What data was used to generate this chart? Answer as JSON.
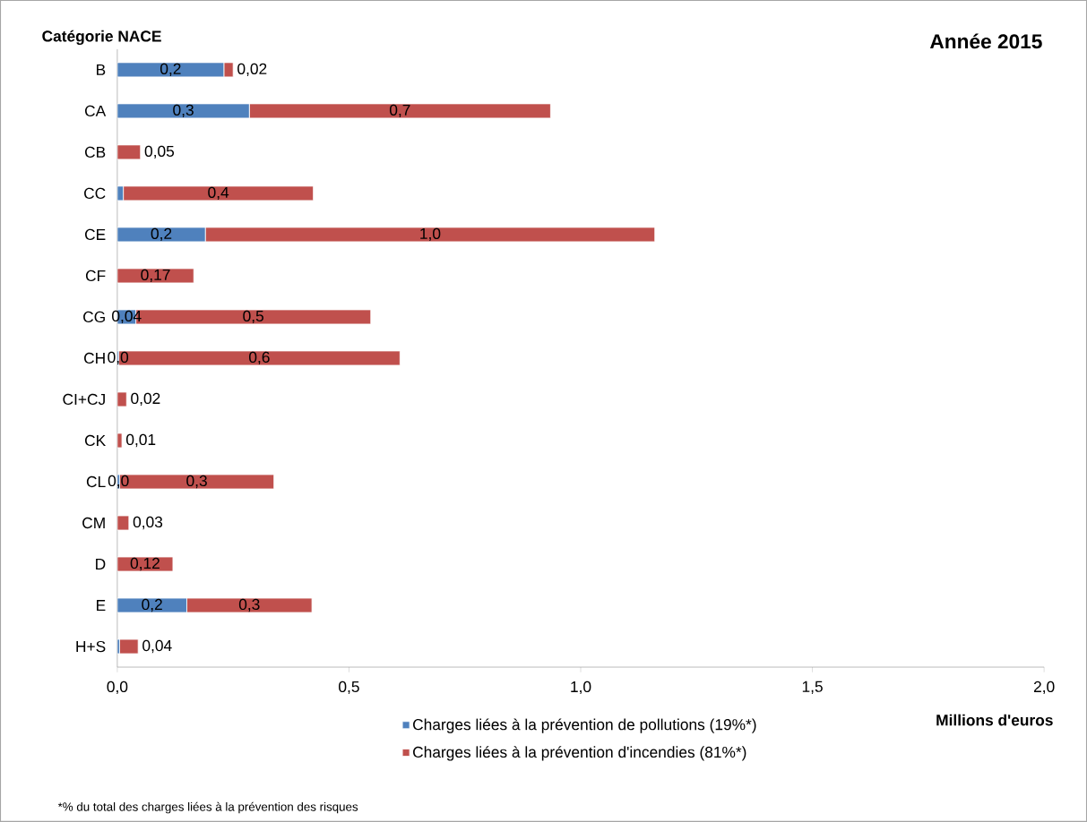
{
  "chart_data": {
    "type": "bar",
    "orientation": "horizontal",
    "stacked": true,
    "title": "Année 2015",
    "xlabel": "Millions d'euros",
    "ylabel": "Catégorie NACE",
    "categories": [
      "B",
      "CA",
      "CB",
      "CC",
      "CE",
      "CF",
      "CG",
      "CH",
      "CI+CJ",
      "CK",
      "CL",
      "CM",
      "D",
      "E",
      "H+S"
    ],
    "series": [
      {
        "name": "Charges liées à la prévention de pollutions (19%*)",
        "color": "#4f81bd",
        "values": [
          0.23,
          0.285,
          0,
          0.013,
          0.19,
          null,
          0.04,
          0.003,
          0,
          0,
          0.005,
          0,
          0,
          0.15,
          0.005
        ],
        "value_labels": [
          "0,2",
          "0,3",
          null,
          null,
          "0,2",
          null,
          "0,04",
          "0,0",
          null,
          null,
          "0,0",
          null,
          null,
          "0,2",
          null
        ]
      },
      {
        "name": "Charges liées à la prévention d'incendies (81%*)",
        "color": "#c0504d",
        "values": [
          0.02,
          0.65,
          0.05,
          0.41,
          0.97,
          0.165,
          0.507,
          0.607,
          0.02,
          0.01,
          0.333,
          0.025,
          0.12,
          0.27,
          0.04
        ],
        "value_labels": [
          "0,02",
          "0,7",
          "0,05",
          "0,4",
          "1,0",
          "0,17",
          "0,5",
          "0,6",
          "0,02",
          "0,01",
          "0,3",
          "0,03",
          "0,12",
          "0,3",
          "0,04"
        ]
      }
    ],
    "xlim": [
      0,
      2
    ],
    "xticks": [
      {
        "value": 0,
        "label": "0,0"
      },
      {
        "value": 0.5,
        "label": "0,5"
      },
      {
        "value": 1,
        "label": "1,0"
      },
      {
        "value": 1.5,
        "label": "1,5"
      },
      {
        "value": 2,
        "label": "2,0"
      }
    ],
    "legend": "bottom",
    "grid": false,
    "annotations": [
      "*% du total des charges liées à la prévention des risques"
    ]
  }
}
